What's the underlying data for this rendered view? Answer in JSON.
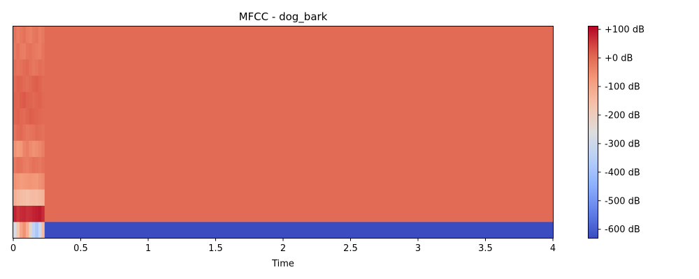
{
  "chart_data": {
    "type": "heatmap",
    "title": "MFCC - dog_bark",
    "xlabel": "Time",
    "ylabel": "",
    "x_unit": "s",
    "xlim": [
      0,
      4
    ],
    "x_ticks": [
      0,
      0.5,
      1,
      1.5,
      2,
      2.5,
      3,
      3.5,
      4
    ],
    "x_tick_labels": [
      "0",
      "0.5",
      "1",
      "1.5",
      "2",
      "2.5",
      "3",
      "3.5",
      "4"
    ],
    "y_ticks_shown": false,
    "n_coefficients": 13,
    "frame_duration_s": 0.0232,
    "silence_start_s": 0.35,
    "colormap": "coolwarm",
    "color_range_db": [
      -630,
      110
    ],
    "colorbar": {
      "ticks": [
        100,
        0,
        -100,
        -200,
        -300,
        -400,
        -500,
        -600
      ],
      "labels": [
        "+100 dB",
        "+0 dB",
        "-100 dB",
        "-200 dB",
        "-300 dB",
        "-400 dB",
        "-500 dB",
        "-600 dB"
      ]
    },
    "coefficients": [
      {
        "index": 0,
        "active_db": [
          -280,
          -180,
          -100,
          -60,
          -120,
          -220,
          -330,
          -380,
          -300,
          -150
        ],
        "silence_db": -630
      },
      {
        "index": 1,
        "active_db": [
          80,
          60,
          70,
          75,
          65,
          70,
          80,
          85,
          90,
          70
        ],
        "silence_db": 0
      },
      {
        "index": 2,
        "active_db": [
          -120,
          -140,
          -150,
          -155,
          -160,
          -150,
          -145,
          -150,
          -140,
          -130
        ],
        "silence_db": 0
      },
      {
        "index": 3,
        "active_db": [
          -60,
          -70,
          -80,
          -75,
          -70,
          -65,
          -70,
          -75,
          -60,
          -50
        ],
        "silence_db": 0
      },
      {
        "index": 4,
        "active_db": [
          -20,
          -10,
          -15,
          -25,
          -30,
          -20,
          -10,
          -15,
          -20,
          -10
        ],
        "silence_db": 0
      },
      {
        "index": 5,
        "active_db": [
          -60,
          -80,
          -70,
          -40,
          -30,
          -50,
          -60,
          -55,
          -45,
          -30
        ],
        "silence_db": 0
      },
      {
        "index": 6,
        "active_db": [
          -10,
          0,
          5,
          -10,
          -20,
          -15,
          -10,
          0,
          -5,
          -10
        ],
        "silence_db": 0
      },
      {
        "index": 7,
        "active_db": [
          10,
          15,
          5,
          0,
          10,
          20,
          15,
          10,
          5,
          0
        ],
        "silence_db": 0
      },
      {
        "index": 8,
        "active_db": [
          15,
          10,
          20,
          25,
          15,
          10,
          5,
          10,
          15,
          5
        ],
        "silence_db": 0
      },
      {
        "index": 9,
        "active_db": [
          5,
          15,
          10,
          0,
          -5,
          5,
          15,
          20,
          10,
          0
        ],
        "silence_db": 0
      },
      {
        "index": 10,
        "active_db": [
          -5,
          -15,
          -10,
          0,
          5,
          -10,
          -20,
          -15,
          -5,
          -10
        ],
        "silence_db": 0
      },
      {
        "index": 11,
        "active_db": [
          -20,
          -10,
          -25,
          -30,
          -15,
          -10,
          -20,
          -25,
          -30,
          -15
        ],
        "silence_db": 0
      },
      {
        "index": 12,
        "active_db": [
          -15,
          -30,
          -20,
          -10,
          -25,
          -35,
          -20,
          -15,
          -30,
          -20
        ],
        "silence_db": 0
      }
    ]
  }
}
